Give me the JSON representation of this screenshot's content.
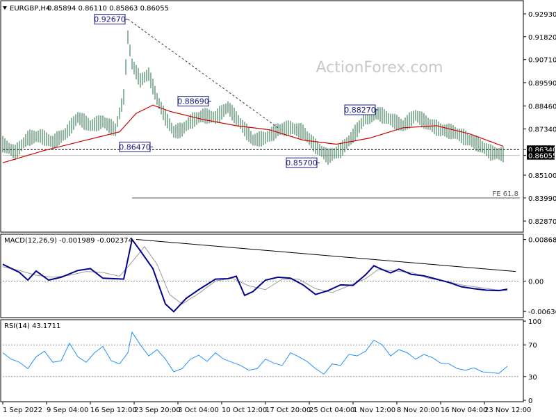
{
  "chart_data": [
    {
      "type": "line",
      "panel": "price",
      "symbol": "EURGBP,H4",
      "ohlc_header": [
        "0.85894",
        "0.86110",
        "0.85863",
        "0.86055"
      ],
      "watermark": "ActionForex.com",
      "ylim": [
        0.824,
        0.934
      ],
      "y_ticks": [
        "0.92930",
        "0.91820",
        "0.90710",
        "0.89590",
        "0.88460",
        "0.87340",
        "0.86340",
        "0.86055",
        "0.85100",
        "0.83990",
        "0.82870"
      ],
      "y_tick_values": [
        0.9293,
        0.9182,
        0.9071,
        0.8959,
        0.8846,
        0.8734,
        0.8634,
        0.86055,
        0.851,
        0.8399,
        0.8287
      ],
      "highlight_ticks": [
        "0.86340",
        "0.86055"
      ],
      "annotations": [
        {
          "text": "0.92670",
          "x": 30,
          "y": 0.9267
        },
        {
          "text": "0.88690",
          "x": 50,
          "y": 0.8869
        },
        {
          "text": "0.86470",
          "x": 36,
          "y": 0.8647
        },
        {
          "text": "0.85700",
          "x": 76,
          "y": 0.857
        },
        {
          "text": "0.88270",
          "x": 90,
          "y": 0.8827
        }
      ],
      "fe_label": "FE 61.8",
      "fe_level": 0.8399,
      "support_level": 0.8634,
      "trendline": [
        {
          "x": 30,
          "y": 0.9267
        },
        {
          "x": 66,
          "y": 0.874
        }
      ],
      "series": [
        {
          "name": "",
          "color": "#1e6b3c",
          "kind": "bars",
          "x": [
            0,
            3,
            6,
            9,
            12,
            15,
            18,
            21,
            24,
            27,
            29,
            30,
            31,
            33,
            35,
            37,
            39,
            41,
            43,
            45,
            48,
            51,
            54,
            57,
            60,
            63,
            66,
            69,
            72,
            75,
            78,
            81,
            84,
            87,
            90,
            93,
            96,
            99,
            102,
            105,
            108,
            111,
            114,
            117,
            120
          ],
          "values": [
            0.866,
            0.862,
            0.869,
            0.87,
            0.867,
            0.871,
            0.879,
            0.875,
            0.877,
            0.873,
            0.889,
            0.918,
            0.905,
            0.897,
            0.9,
            0.888,
            0.879,
            0.872,
            0.873,
            0.877,
            0.88,
            0.879,
            0.884,
            0.876,
            0.868,
            0.869,
            0.873,
            0.874,
            0.872,
            0.865,
            0.86,
            0.863,
            0.87,
            0.879,
            0.881,
            0.878,
            0.875,
            0.88,
            0.876,
            0.873,
            0.872,
            0.869,
            0.866,
            0.862,
            0.861
          ]
        },
        {
          "name": "",
          "color": "#cc0000",
          "kind": "line",
          "x": [
            0,
            10,
            20,
            28,
            32,
            36,
            40,
            48,
            56,
            64,
            72,
            80,
            88,
            96,
            104,
            112,
            120
          ],
          "values": [
            0.857,
            0.863,
            0.868,
            0.872,
            0.881,
            0.885,
            0.882,
            0.878,
            0.875,
            0.873,
            0.868,
            0.866,
            0.869,
            0.874,
            0.875,
            0.871,
            0.865
          ]
        }
      ]
    },
    {
      "type": "line",
      "panel": "macd",
      "title": "MACD(12,26,9) -0.001989 -0.002374",
      "ylim": [
        -0.0075,
        0.0095
      ],
      "y_ticks": [
        "0.008686",
        "0.00",
        "-0.006366"
      ],
      "y_tick_values": [
        0.008686,
        0.0,
        -0.006366
      ],
      "zero_line": 0.0,
      "trendline": [
        {
          "x": 32,
          "y": 0.0087
        },
        {
          "x": 123,
          "y": 0.002
        }
      ],
      "series": [
        {
          "name": "",
          "color": "#00008b",
          "x": [
            0,
            4,
            6,
            8,
            11,
            14,
            18,
            21,
            24,
            29,
            31,
            33,
            36,
            39,
            41,
            44,
            47,
            51,
            54,
            56,
            58,
            60,
            63,
            66,
            69,
            72,
            75,
            78,
            81,
            84,
            87,
            89,
            91,
            93,
            95,
            98,
            101,
            104,
            107,
            110,
            113,
            116,
            119,
            121
          ],
          "values": [
            0.0035,
            0.0018,
            0.0002,
            0.0021,
            0.0002,
            0.0008,
            0.0022,
            0.0026,
            0.0006,
            0.0004,
            0.0087,
            0.0063,
            0.0026,
            -0.0048,
            -0.0064,
            -0.0036,
            -0.0018,
            0.0004,
            0.0005,
            0.001,
            -0.003,
            -0.0022,
            0.0002,
            0.0008,
            0.0006,
            -0.0008,
            -0.0028,
            -0.002,
            -0.0008,
            -0.0009,
            0.0013,
            0.0032,
            0.0024,
            0.0017,
            0.0025,
            0.0014,
            0.0011,
            0.0004,
            -0.0003,
            -0.0012,
            -0.0016,
            -0.0019,
            -0.002,
            -0.0017
          ]
        },
        {
          "name": "",
          "color": "#9a9a9a",
          "x": [
            0,
            4,
            8,
            12,
            16,
            20,
            24,
            28,
            31,
            34,
            37,
            40,
            43,
            47,
            51,
            55,
            59,
            63,
            67,
            71,
            75,
            79,
            83,
            87,
            90,
            94,
            98,
            102,
            106,
            110,
            114,
            118,
            121
          ],
          "values": [
            0.003,
            0.0022,
            0.0012,
            0.0008,
            0.0012,
            0.002,
            0.0018,
            0.001,
            0.004,
            0.0072,
            0.0035,
            -0.0028,
            -0.0048,
            -0.0026,
            0.0,
            0.0006,
            -0.001,
            -0.0018,
            0.0004,
            0.0004,
            -0.0016,
            -0.0024,
            -0.001,
            0.0005,
            0.0024,
            0.0021,
            0.0018,
            0.0006,
            0.0,
            -0.0008,
            -0.0013,
            -0.0018,
            -0.002
          ]
        }
      ]
    },
    {
      "type": "line",
      "panel": "rsi",
      "title": "RSI(14) 43.1711",
      "ylim": [
        0,
        100
      ],
      "y_ticks": [
        "100",
        "70",
        "30",
        "0"
      ],
      "y_tick_values": [
        100,
        70,
        30,
        0
      ],
      "levels": [
        70,
        30
      ],
      "series": [
        {
          "name": "",
          "color": "#1e90ff",
          "x": [
            0,
            2,
            4,
            6,
            8,
            10,
            12,
            14,
            16,
            18,
            20,
            22,
            24,
            26,
            28,
            30,
            31,
            33,
            35,
            37,
            39,
            41,
            43,
            45,
            47,
            49,
            51,
            53,
            55,
            57,
            59,
            61,
            63,
            65,
            67,
            69,
            71,
            73,
            75,
            77,
            79,
            81,
            83,
            85,
            87,
            89,
            91,
            93,
            95,
            97,
            99,
            101,
            103,
            105,
            107,
            109,
            111,
            113,
            115,
            117,
            119,
            121
          ],
          "values": [
            60,
            52,
            48,
            40,
            55,
            62,
            48,
            50,
            72,
            55,
            48,
            60,
            68,
            50,
            46,
            60,
            86,
            70,
            56,
            64,
            52,
            36,
            40,
            52,
            57,
            49,
            60,
            52,
            48,
            44,
            38,
            40,
            52,
            47,
            44,
            60,
            55,
            49,
            40,
            33,
            46,
            44,
            58,
            56,
            62,
            76,
            70,
            56,
            64,
            60,
            52,
            58,
            54,
            47,
            46,
            40,
            38,
            41,
            36,
            35,
            34,
            43
          ]
        }
      ]
    }
  ],
  "x_axis": {
    "labels": [
      "1 Sep 2022",
      "9 Sep 04:00",
      "16 Sep 12:00",
      "23 Sep 20:00",
      "3 Oct 04:00",
      "10 Oct 12:00",
      "17 Oct 20:00",
      "25 Oct 04:00",
      "1 Nov 12:00",
      "8 Nov 20:00",
      "16 Nov 04:00",
      "23 Nov 12:00"
    ],
    "positions": [
      0,
      10.5,
      21,
      31.5,
      42,
      52.5,
      63,
      73.5,
      84,
      94.5,
      105,
      115.5
    ],
    "xlim": [
      0,
      124
    ]
  }
}
